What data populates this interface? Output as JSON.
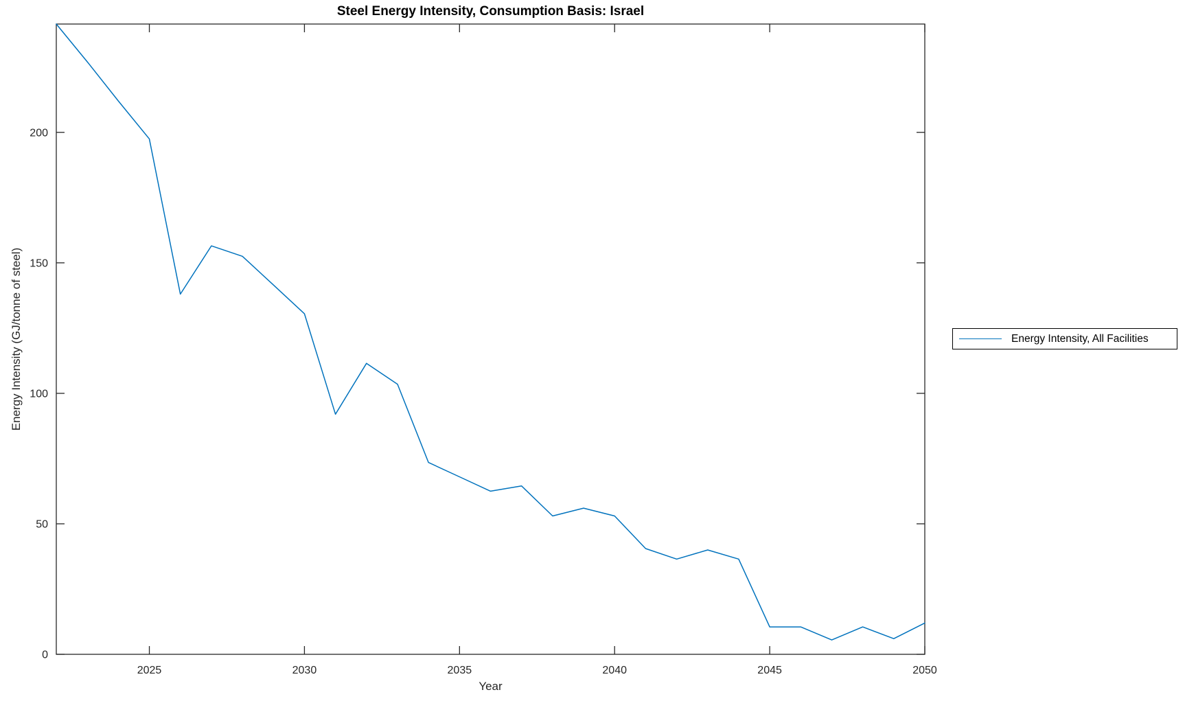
{
  "chart_data": {
    "type": "line",
    "title": "Steel Energy Intensity, Consumption Basis: Israel",
    "xlabel": "Year",
    "ylabel": "Energy Intensity (GJ/tonne of steel)",
    "xlim": [
      2022,
      2050
    ],
    "ylim": [
      0,
      241.5
    ],
    "xticks": [
      2025,
      2030,
      2035,
      2040,
      2045,
      2050
    ],
    "yticks": [
      0,
      50,
      100,
      150,
      200
    ],
    "grid": false,
    "legend_position": "right-outside",
    "axis_color": "#262626",
    "series": [
      {
        "name": "Energy Intensity, All Facilities",
        "color": "#0072BD",
        "x": [
          2022,
          2023,
          2024,
          2025,
          2026,
          2027,
          2028,
          2029,
          2030,
          2031,
          2032,
          2033,
          2034,
          2035,
          2036,
          2037,
          2038,
          2039,
          2040,
          2041,
          2042,
          2043,
          2044,
          2045,
          2046,
          2047,
          2048,
          2049,
          2050
        ],
        "y": [
          241.5,
          227,
          212,
          197.5,
          138,
          156.5,
          152.5,
          141.5,
          130.5,
          92,
          111.5,
          103.5,
          73.5,
          68,
          62.5,
          64.5,
          53,
          56,
          53,
          40.5,
          36.5,
          40,
          36.5,
          10.5,
          10.5,
          5.5,
          10.5,
          6,
          12
        ]
      }
    ]
  }
}
